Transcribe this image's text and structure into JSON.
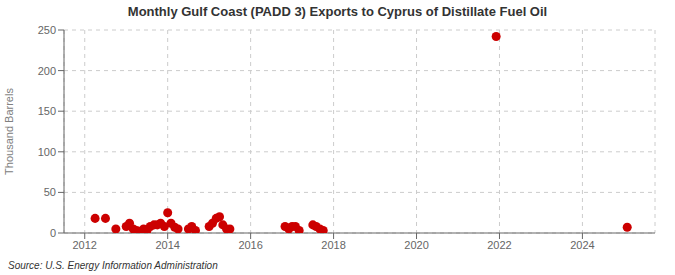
{
  "chart_data": {
    "type": "scatter",
    "title": "Monthly Gulf Coast (PADD 3) Exports to Cyprus of Distillate Fuel Oil",
    "y_label": "Thousand Barrels",
    "annotations": [
      "Source: U.S. Energy Information Administration"
    ],
    "color": "#cc0000",
    "xlim": [
      2011.5,
      2025.75
    ],
    "xticks": [
      2012,
      2014,
      2016,
      2018,
      2020,
      2022,
      2024
    ],
    "ylim": [
      0,
      250
    ],
    "yticks": [
      0,
      50,
      100,
      150,
      200,
      250
    ],
    "grid": true,
    "x": [
      2012.25,
      2012.5,
      2012.75,
      2013.0,
      2013.08,
      2013.17,
      2013.25,
      2013.33,
      2013.42,
      2013.5,
      2013.58,
      2013.67,
      2013.75,
      2013.83,
      2013.92,
      2014.0,
      2014.08,
      2014.17,
      2014.25,
      2014.5,
      2014.58,
      2014.67,
      2015.0,
      2015.08,
      2015.17,
      2015.25,
      2015.33,
      2015.42,
      2015.5,
      2016.83,
      2016.92,
      2017.0,
      2017.08,
      2017.17,
      2017.5,
      2017.58,
      2017.67,
      2017.75,
      2021.92,
      2025.08
    ],
    "values": [
      18,
      18,
      5,
      8,
      12,
      5,
      3,
      2,
      5,
      3,
      8,
      10,
      10,
      12,
      8,
      25,
      12,
      7,
      5,
      5,
      8,
      3,
      8,
      12,
      18,
      20,
      10,
      5,
      5,
      8,
      5,
      8,
      8,
      3,
      10,
      8,
      5,
      3,
      242,
      7
    ]
  }
}
